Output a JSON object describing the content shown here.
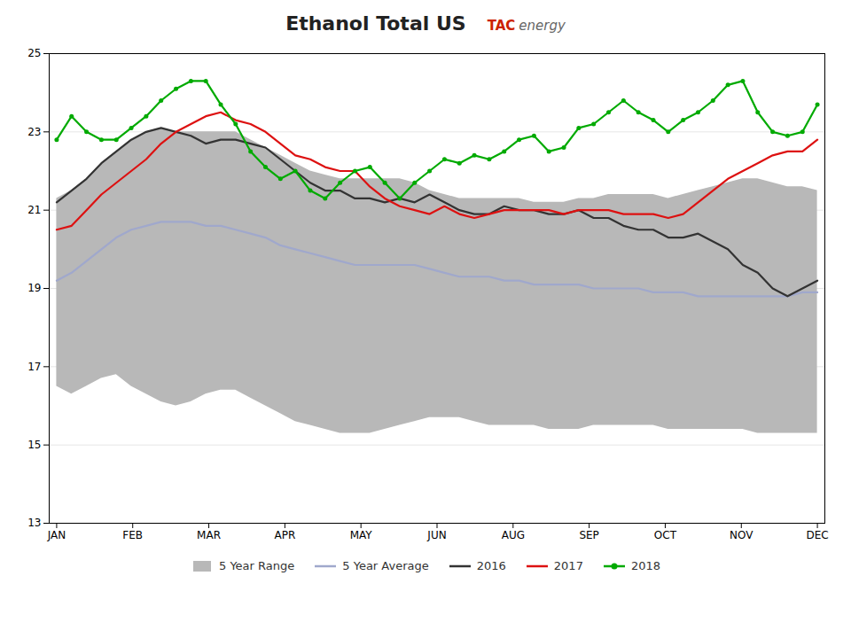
{
  "chart_data": {
    "type": "line",
    "title": "Ethanol Total US",
    "annotations": [
      {
        "text": "TAC",
        "color": "#cc2200"
      },
      {
        "text": "energy",
        "color": "#666666"
      }
    ],
    "x": [
      0,
      1,
      2,
      3,
      4,
      5,
      6,
      7,
      8,
      9,
      10,
      11,
      12,
      13,
      14,
      15,
      16,
      17,
      18,
      19,
      20,
      21,
      22,
      23,
      24,
      25,
      26,
      27,
      28,
      29,
      30,
      31,
      32,
      33,
      34,
      35,
      36,
      37,
      38,
      39,
      40,
      41,
      42,
      43,
      44,
      45,
      46,
      47,
      48,
      49,
      50,
      51
    ],
    "xlim": [
      -0.5,
      51.5
    ],
    "xticks": [
      {
        "value": 0,
        "label": "JAN"
      },
      {
        "value": 5.1,
        "label": "FEB"
      },
      {
        "value": 10.2,
        "label": "MAR"
      },
      {
        "value": 15.3,
        "label": "APR"
      },
      {
        "value": 20.4,
        "label": "MAY"
      },
      {
        "value": 25.5,
        "label": "JUN"
      },
      {
        "value": 30.6,
        "label": "AUG"
      },
      {
        "value": 35.7,
        "label": "SEP"
      },
      {
        "value": 40.8,
        "label": "OCT"
      },
      {
        "value": 45.9,
        "label": "NOV"
      },
      {
        "value": 51,
        "label": "DEC"
      }
    ],
    "ylim": [
      13,
      25
    ],
    "yticks": [
      13,
      15,
      17,
      19,
      21,
      23,
      25
    ],
    "grid": "y",
    "legend": "bottom",
    "series": [
      {
        "name": "5 Year Range",
        "type": "area",
        "color": "#b8b8b8",
        "upper": [
          21.3,
          21.5,
          21.8,
          22.2,
          22.5,
          22.8,
          23.0,
          23.1,
          23.0,
          23.0,
          23.0,
          23.0,
          23.0,
          22.8,
          22.6,
          22.4,
          22.2,
          22.0,
          21.9,
          21.8,
          21.8,
          21.8,
          21.8,
          21.8,
          21.7,
          21.5,
          21.4,
          21.3,
          21.3,
          21.3,
          21.3,
          21.3,
          21.2,
          21.2,
          21.2,
          21.3,
          21.3,
          21.4,
          21.4,
          21.4,
          21.4,
          21.3,
          21.4,
          21.5,
          21.6,
          21.7,
          21.8,
          21.8,
          21.7,
          21.6,
          21.6,
          21.5
        ],
        "lower": [
          16.5,
          16.3,
          16.5,
          16.7,
          16.8,
          16.5,
          16.3,
          16.1,
          16.0,
          16.1,
          16.3,
          16.4,
          16.4,
          16.2,
          16.0,
          15.8,
          15.6,
          15.5,
          15.4,
          15.3,
          15.3,
          15.3,
          15.4,
          15.5,
          15.6,
          15.7,
          15.7,
          15.7,
          15.6,
          15.5,
          15.5,
          15.5,
          15.5,
          15.4,
          15.4,
          15.4,
          15.5,
          15.5,
          15.5,
          15.5,
          15.5,
          15.4,
          15.4,
          15.4,
          15.4,
          15.4,
          15.4,
          15.3,
          15.3,
          15.3,
          15.3,
          15.3
        ]
      },
      {
        "name": "5 Year Average",
        "type": "line",
        "color": "#a0a8cc",
        "values": [
          19.2,
          19.4,
          19.7,
          20.0,
          20.3,
          20.5,
          20.6,
          20.7,
          20.7,
          20.7,
          20.6,
          20.6,
          20.5,
          20.4,
          20.3,
          20.1,
          20.0,
          19.9,
          19.8,
          19.7,
          19.6,
          19.6,
          19.6,
          19.6,
          19.6,
          19.5,
          19.4,
          19.3,
          19.3,
          19.3,
          19.2,
          19.2,
          19.1,
          19.1,
          19.1,
          19.1,
          19.0,
          19.0,
          19.0,
          19.0,
          18.9,
          18.9,
          18.9,
          18.8,
          18.8,
          18.8,
          18.8,
          18.8,
          18.8,
          18.8,
          18.9,
          18.9
        ]
      },
      {
        "name": "2016",
        "type": "line",
        "color": "#333333",
        "values": [
          21.2,
          21.5,
          21.8,
          22.2,
          22.5,
          22.8,
          23.0,
          23.1,
          23.0,
          22.9,
          22.7,
          22.8,
          22.8,
          22.7,
          22.6,
          22.3,
          22.0,
          21.7,
          21.5,
          21.5,
          21.3,
          21.3,
          21.2,
          21.3,
          21.2,
          21.4,
          21.2,
          21.0,
          20.9,
          20.9,
          21.1,
          21.0,
          21.0,
          20.9,
          20.9,
          21.0,
          20.8,
          20.8,
          20.6,
          20.5,
          20.5,
          20.3,
          20.3,
          20.4,
          20.2,
          20.0,
          19.6,
          19.4,
          19.0,
          18.8,
          19.0,
          19.2
        ]
      },
      {
        "name": "2017",
        "type": "line",
        "color": "#dd1111",
        "values": [
          20.5,
          20.6,
          21.0,
          21.4,
          21.7,
          22.0,
          22.3,
          22.7,
          23.0,
          23.2,
          23.4,
          23.5,
          23.3,
          23.2,
          23.0,
          22.7,
          22.4,
          22.3,
          22.1,
          22.0,
          22.0,
          21.6,
          21.3,
          21.1,
          21.0,
          20.9,
          21.1,
          20.9,
          20.8,
          20.9,
          21.0,
          21.0,
          21.0,
          21.0,
          20.9,
          21.0,
          21.0,
          21.0,
          20.9,
          20.9,
          20.9,
          20.8,
          20.9,
          21.2,
          21.5,
          21.8,
          22.0,
          22.2,
          22.4,
          22.5,
          22.5,
          22.8
        ]
      },
      {
        "name": "2018",
        "type": "line",
        "color": "#00aa00",
        "marker": "circle",
        "values": [
          22.8,
          23.4,
          23.0,
          22.8,
          22.8,
          23.1,
          23.4,
          23.8,
          24.1,
          24.3,
          24.3,
          23.7,
          23.2,
          22.5,
          22.1,
          21.8,
          22.0,
          21.5,
          21.3,
          21.7,
          22.0,
          22.1,
          21.7,
          21.3,
          21.7,
          22.0,
          22.3,
          22.2,
          22.4,
          22.3,
          22.5,
          22.8,
          22.9,
          22.5,
          22.6,
          23.1,
          23.2,
          23.5,
          23.8,
          23.5,
          23.3,
          23.0,
          23.3,
          23.5,
          23.8,
          24.2,
          24.3,
          23.5,
          23.0,
          22.9,
          23.0,
          23.7
        ]
      }
    ]
  }
}
